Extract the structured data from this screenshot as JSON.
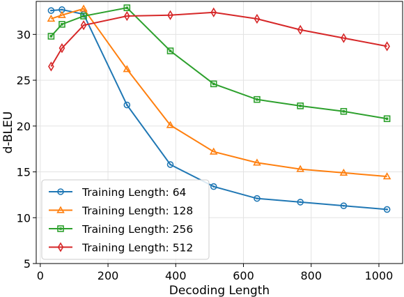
{
  "chart_data": {
    "type": "line",
    "title": "",
    "xlabel": "Decoding Length",
    "ylabel": "d-BLEU",
    "xlim": [
      -12,
      1070
    ],
    "ylim": [
      5,
      33.6
    ],
    "xticks": [
      0,
      200,
      400,
      600,
      800,
      1000
    ],
    "yticks": [
      5,
      10,
      15,
      20,
      25,
      30
    ],
    "grid": true,
    "legend_position": "lower-left",
    "x": [
      32,
      64,
      128,
      256,
      384,
      512,
      640,
      768,
      896,
      1024
    ],
    "series": [
      {
        "name": "Training Length: 64",
        "color": "#1f77b4",
        "marker": "circle",
        "values": [
          32.6,
          32.7,
          32.2,
          22.3,
          15.8,
          13.4,
          12.1,
          11.7,
          11.3,
          10.9
        ]
      },
      {
        "name": "Training Length: 128",
        "color": "#ff7f0e",
        "marker": "triangle",
        "values": [
          31.7,
          32.1,
          32.8,
          26.2,
          20.1,
          17.2,
          16.0,
          15.3,
          14.9,
          14.5
        ]
      },
      {
        "name": "Training Length: 256",
        "color": "#2ca02c",
        "marker": "square",
        "values": [
          29.8,
          31.1,
          32.0,
          32.9,
          28.2,
          24.6,
          22.9,
          22.2,
          21.6,
          20.8
        ]
      },
      {
        "name": "Training Length: 512",
        "color": "#d62728",
        "marker": "diamond",
        "values": [
          26.5,
          28.5,
          31.0,
          32.0,
          32.1,
          32.4,
          31.7,
          30.5,
          29.6,
          28.7
        ]
      }
    ]
  }
}
